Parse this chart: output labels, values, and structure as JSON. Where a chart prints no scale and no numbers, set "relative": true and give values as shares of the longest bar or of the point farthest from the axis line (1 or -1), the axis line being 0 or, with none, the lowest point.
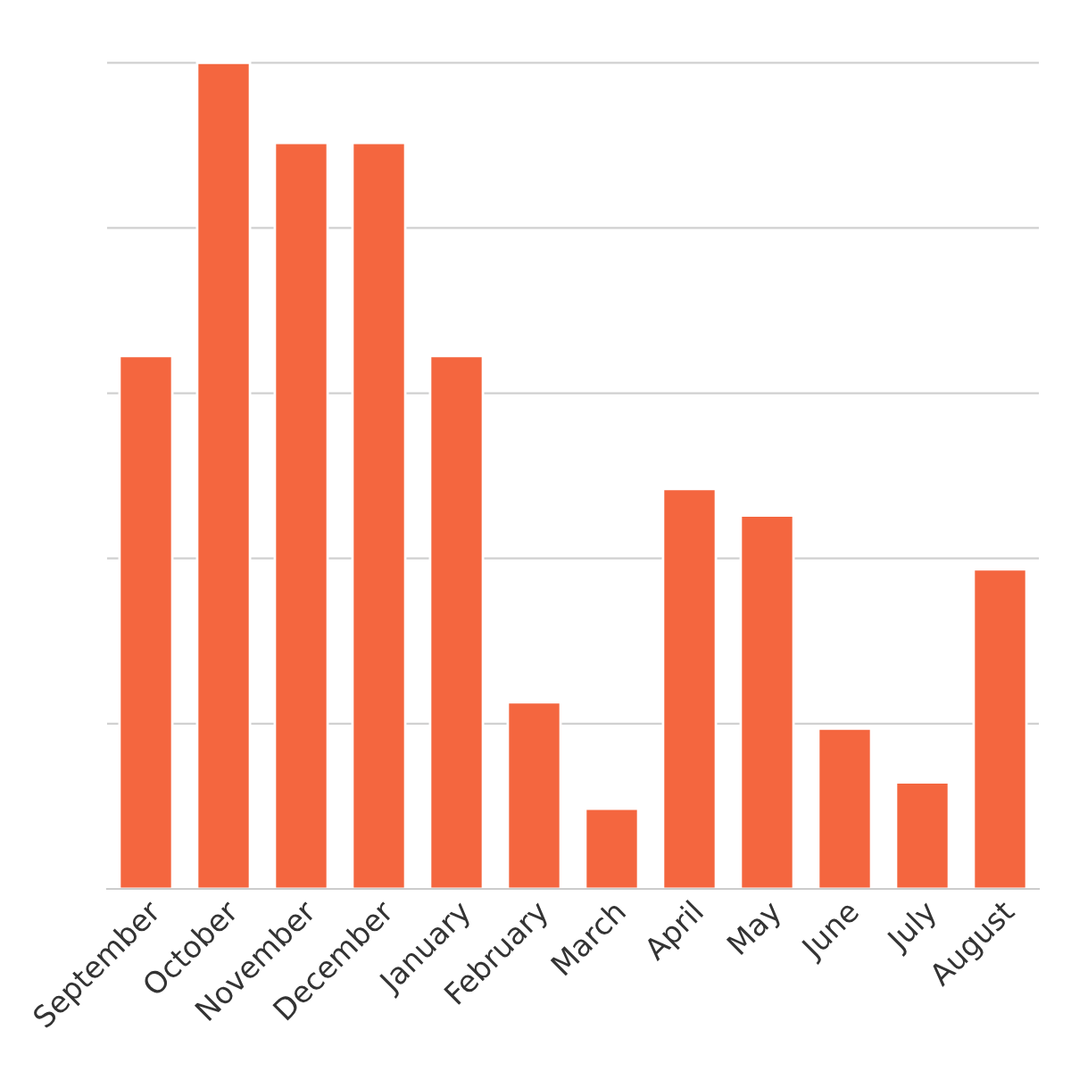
{
  "chart_data": {
    "type": "bar",
    "relative": true,
    "grid": "y",
    "color": "#f4663f",
    "categories": [
      "September",
      "October",
      "November",
      "December",
      "January",
      "February",
      "March",
      "April",
      "May",
      "June",
      "July",
      "August"
    ],
    "values": [
      0.645,
      1,
      0.903,
      0.903,
      0.645,
      0.226,
      0.097,
      0.484,
      0.452,
      0.194,
      0.129,
      0.387
    ]
  }
}
